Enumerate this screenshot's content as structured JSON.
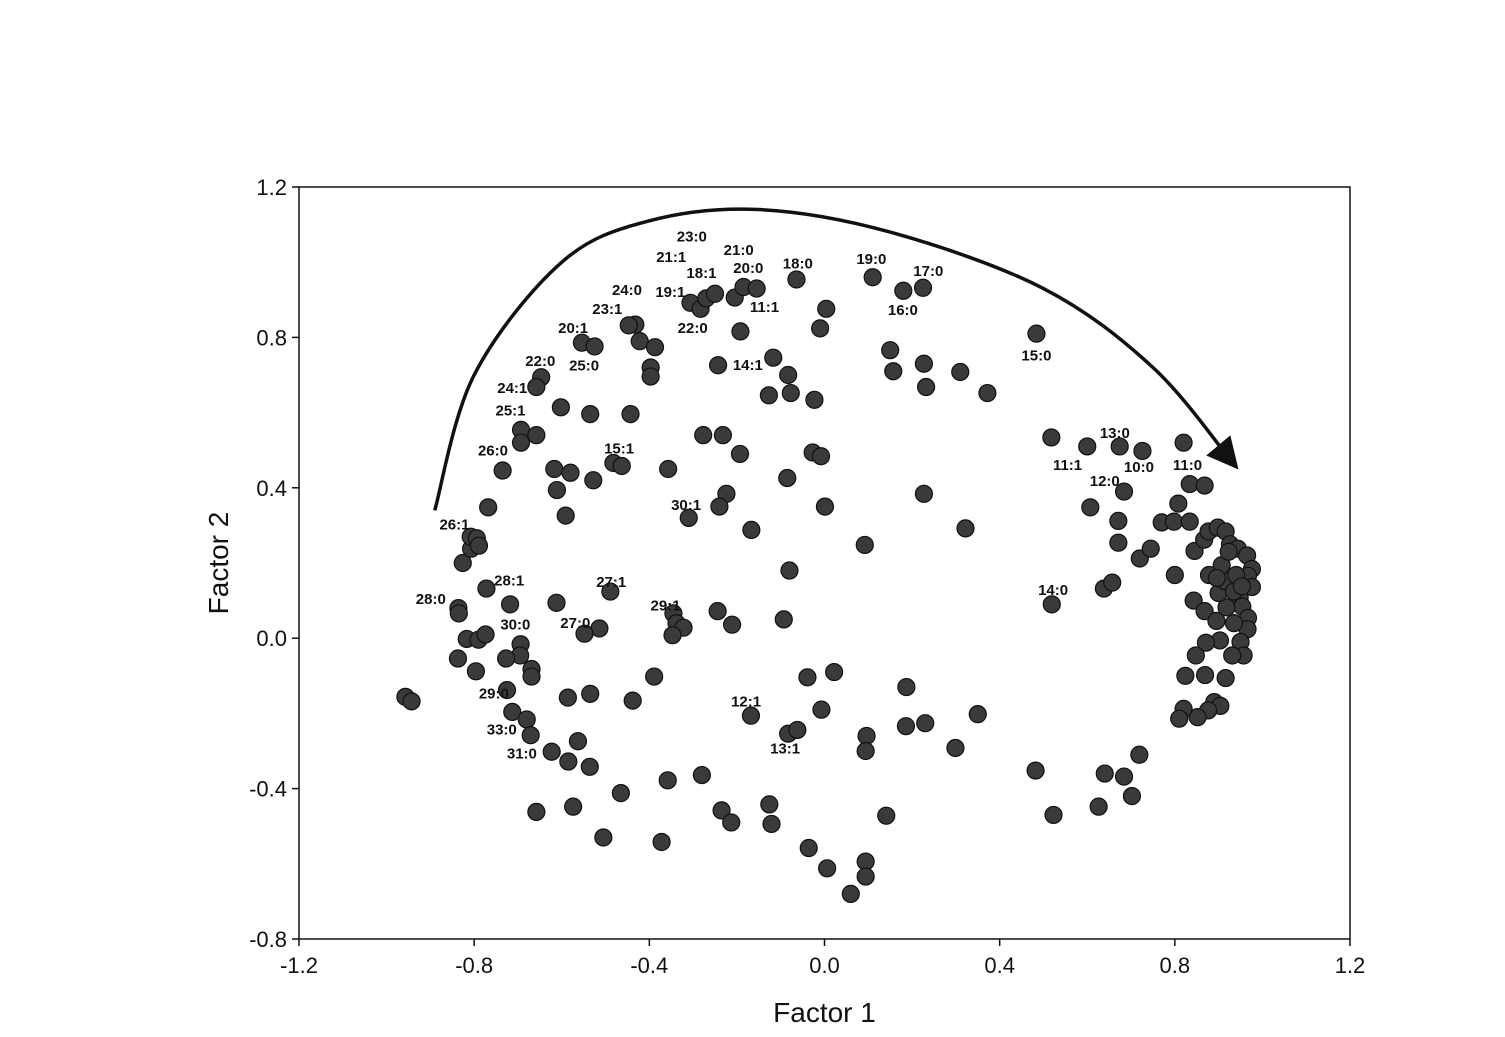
{
  "chart_data": {
    "type": "scatter",
    "title": "",
    "xlabel": "Factor 1",
    "ylabel": "Factor 2",
    "xlim": [
      -1.2,
      1.2
    ],
    "ylim": [
      -0.8,
      1.2
    ],
    "x_ticks": [
      -1.2,
      -0.8,
      -0.4,
      0.0,
      0.4,
      0.8,
      1.2
    ],
    "y_ticks": [
      -0.8,
      -0.4,
      0.0,
      0.4,
      0.8,
      1.2
    ],
    "x_tick_labels": [
      "-1.2",
      "-0.8",
      "-0.4",
      "0.0",
      "0.4",
      "0.8",
      "1.2"
    ],
    "y_tick_labels": [
      "-0.8",
      "-0.4",
      "0.0",
      "0.4",
      "0.8",
      "1.2"
    ],
    "grid": false,
    "legend": "none",
    "marker_color": "#3a3a3a",
    "arrow_path": [
      [
        -0.89,
        0.34
      ],
      [
        -0.8,
        0.7
      ],
      [
        -0.6,
        1.0
      ],
      [
        -0.4,
        1.11
      ],
      [
        -0.15,
        1.14
      ],
      [
        0.15,
        1.08
      ],
      [
        0.5,
        0.93
      ],
      [
        0.75,
        0.72
      ],
      [
        0.93,
        0.47
      ]
    ],
    "labels": [
      {
        "text": "23:0",
        "x": -0.303,
        "y": 1.068
      },
      {
        "text": "21:1",
        "x": -0.35,
        "y": 1.014
      },
      {
        "text": "21:0",
        "x": -0.196,
        "y": 1.033
      },
      {
        "text": "18:1",
        "x": -0.281,
        "y": 0.971
      },
      {
        "text": "20:0",
        "x": -0.174,
        "y": 0.985
      },
      {
        "text": "18:0",
        "x": -0.061,
        "y": 0.996
      },
      {
        "text": "19:0",
        "x": 0.107,
        "y": 1.009
      },
      {
        "text": "17:0",
        "x": 0.237,
        "y": 0.977
      },
      {
        "text": "24:0",
        "x": -0.451,
        "y": 0.926
      },
      {
        "text": "19:1",
        "x": -0.352,
        "y": 0.921
      },
      {
        "text": "11:1",
        "x": -0.137,
        "y": 0.881
      },
      {
        "text": "23:1",
        "x": -0.496,
        "y": 0.876
      },
      {
        "text": "22:0",
        "x": -0.301,
        "y": 0.825
      },
      {
        "text": "16:0",
        "x": 0.179,
        "y": 0.873
      },
      {
        "text": "20:1",
        "x": -0.574,
        "y": 0.825
      },
      {
        "text": "25:0",
        "x": -0.549,
        "y": 0.725
      },
      {
        "text": "14:1",
        "x": -0.175,
        "y": 0.727
      },
      {
        "text": "15:0",
        "x": 0.484,
        "y": 0.752
      },
      {
        "text": "22:0",
        "x": -0.649,
        "y": 0.737
      },
      {
        "text": "24:1",
        "x": -0.713,
        "y": 0.665
      },
      {
        "text": "25:1",
        "x": -0.717,
        "y": 0.605
      },
      {
        "text": "13:0",
        "x": 0.663,
        "y": 0.546
      },
      {
        "text": "26:0",
        "x": -0.757,
        "y": 0.499
      },
      {
        "text": "15:1",
        "x": -0.469,
        "y": 0.504
      },
      {
        "text": "11:1",
        "x": 0.555,
        "y": 0.461
      },
      {
        "text": "10:0",
        "x": 0.718,
        "y": 0.455
      },
      {
        "text": "11:0",
        "x": 0.829,
        "y": 0.461
      },
      {
        "text": "12:0",
        "x": 0.64,
        "y": 0.418
      },
      {
        "text": "30:1",
        "x": -0.316,
        "y": 0.354
      },
      {
        "text": "26:1",
        "x": -0.845,
        "y": 0.303
      },
      {
        "text": "28:1",
        "x": -0.72,
        "y": 0.154
      },
      {
        "text": "27:1",
        "x": -0.487,
        "y": 0.15
      },
      {
        "text": "14:0",
        "x": 0.522,
        "y": 0.128
      },
      {
        "text": "28:0",
        "x": -0.899,
        "y": 0.104
      },
      {
        "text": "29:1",
        "x": -0.363,
        "y": 0.087
      },
      {
        "text": "30:0",
        "x": -0.706,
        "y": 0.037
      },
      {
        "text": "27:0",
        "x": -0.569,
        "y": 0.041
      },
      {
        "text": "29:0",
        "x": -0.755,
        "y": -0.147
      },
      {
        "text": "12:1",
        "x": -0.179,
        "y": -0.168
      },
      {
        "text": "33:0",
        "x": -0.737,
        "y": -0.243
      },
      {
        "text": "13:1",
        "x": -0.09,
        "y": -0.294
      },
      {
        "text": "31:0",
        "x": -0.691,
        "y": -0.307
      }
    ],
    "points": [
      {
        "x": -0.306,
        "y": 0.892
      },
      {
        "x": -0.283,
        "y": 0.876
      },
      {
        "x": -0.27,
        "y": 0.904
      },
      {
        "x": -0.25,
        "y": 0.916
      },
      {
        "x": -0.205,
        "y": 0.906
      },
      {
        "x": -0.185,
        "y": 0.934
      },
      {
        "x": -0.155,
        "y": 0.93
      },
      {
        "x": -0.064,
        "y": 0.954
      },
      {
        "x": 0.11,
        "y": 0.96
      },
      {
        "x": 0.18,
        "y": 0.924
      },
      {
        "x": 0.225,
        "y": 0.932
      },
      {
        "x": 0.004,
        "y": 0.876
      },
      {
        "x": -0.01,
        "y": 0.824
      },
      {
        "x": -0.192,
        "y": 0.816
      },
      {
        "x": -0.432,
        "y": 0.834
      },
      {
        "x": -0.447,
        "y": 0.832
      },
      {
        "x": -0.422,
        "y": 0.79
      },
      {
        "x": -0.387,
        "y": 0.774
      },
      {
        "x": -0.397,
        "y": 0.72
      },
      {
        "x": -0.397,
        "y": 0.696
      },
      {
        "x": -0.554,
        "y": 0.786
      },
      {
        "x": -0.525,
        "y": 0.776
      },
      {
        "x": -0.647,
        "y": 0.694
      },
      {
        "x": -0.658,
        "y": 0.668
      },
      {
        "x": -0.602,
        "y": 0.614
      },
      {
        "x": -0.535,
        "y": 0.596
      },
      {
        "x": -0.443,
        "y": 0.596
      },
      {
        "x": -0.693,
        "y": 0.554
      },
      {
        "x": -0.693,
        "y": 0.52
      },
      {
        "x": -0.658,
        "y": 0.54
      },
      {
        "x": -0.735,
        "y": 0.446
      },
      {
        "x": -0.768,
        "y": 0.348
      },
      {
        "x": -0.617,
        "y": 0.45
      },
      {
        "x": -0.58,
        "y": 0.44
      },
      {
        "x": -0.611,
        "y": 0.394
      },
      {
        "x": -0.528,
        "y": 0.42
      },
      {
        "x": -0.591,
        "y": 0.326
      },
      {
        "x": -0.482,
        "y": 0.466
      },
      {
        "x": -0.463,
        "y": 0.458
      },
      {
        "x": -0.357,
        "y": 0.45
      },
      {
        "x": -0.277,
        "y": 0.54
      },
      {
        "x": -0.232,
        "y": 0.54
      },
      {
        "x": -0.193,
        "y": 0.49
      },
      {
        "x": -0.243,
        "y": 0.726
      },
      {
        "x": -0.117,
        "y": 0.746
      },
      {
        "x": -0.083,
        "y": 0.7
      },
      {
        "x": -0.077,
        "y": 0.652
      },
      {
        "x": -0.127,
        "y": 0.646
      },
      {
        "x": -0.023,
        "y": 0.634
      },
      {
        "x": 0.15,
        "y": 0.766
      },
      {
        "x": 0.157,
        "y": 0.71
      },
      {
        "x": 0.227,
        "y": 0.73
      },
      {
        "x": 0.232,
        "y": 0.668
      },
      {
        "x": 0.31,
        "y": 0.708
      },
      {
        "x": 0.372,
        "y": 0.652
      },
      {
        "x": 0.484,
        "y": 0.81
      },
      {
        "x": -0.027,
        "y": 0.494
      },
      {
        "x": -0.008,
        "y": 0.484
      },
      {
        "x": -0.085,
        "y": 0.426
      },
      {
        "x": -0.224,
        "y": 0.384
      },
      {
        "x": -0.24,
        "y": 0.35
      },
      {
        "x": -0.31,
        "y": 0.32
      },
      {
        "x": -0.167,
        "y": 0.288
      },
      {
        "x": 0.001,
        "y": 0.35
      },
      {
        "x": 0.227,
        "y": 0.384
      },
      {
        "x": 0.322,
        "y": 0.292
      },
      {
        "x": 0.092,
        "y": 0.248
      },
      {
        "x": -0.08,
        "y": 0.18
      },
      {
        "x": -0.093,
        "y": 0.05
      },
      {
        "x": -0.244,
        "y": 0.072
      },
      {
        "x": -0.211,
        "y": 0.036
      },
      {
        "x": -0.345,
        "y": 0.066
      },
      {
        "x": -0.338,
        "y": 0.04
      },
      {
        "x": -0.322,
        "y": 0.028
      },
      {
        "x": -0.347,
        "y": 0.008
      },
      {
        "x": -0.489,
        "y": 0.124
      },
      {
        "x": -0.514,
        "y": 0.026
      },
      {
        "x": -0.548,
        "y": 0.012
      },
      {
        "x": -0.612,
        "y": 0.094
      },
      {
        "x": -0.772,
        "y": 0.132
      },
      {
        "x": -0.718,
        "y": 0.09
      },
      {
        "x": -0.836,
        "y": 0.08
      },
      {
        "x": -0.835,
        "y": 0.066
      },
      {
        "x": -0.826,
        "y": 0.2
      },
      {
        "x": -0.807,
        "y": 0.238
      },
      {
        "x": -0.808,
        "y": 0.27
      },
      {
        "x": -0.794,
        "y": 0.266
      },
      {
        "x": -0.789,
        "y": 0.246
      },
      {
        "x": -0.817,
        "y": -0.002
      },
      {
        "x": -0.79,
        "y": -0.004
      },
      {
        "x": -0.774,
        "y": 0.01
      },
      {
        "x": -0.837,
        "y": -0.054
      },
      {
        "x": -0.796,
        "y": -0.088
      },
      {
        "x": -0.694,
        "y": -0.016
      },
      {
        "x": -0.695,
        "y": -0.046
      },
      {
        "x": -0.727,
        "y": -0.054
      },
      {
        "x": -0.669,
        "y": -0.082
      },
      {
        "x": -0.669,
        "y": -0.102
      },
      {
        "x": -0.725,
        "y": -0.138
      },
      {
        "x": -0.713,
        "y": -0.196
      },
      {
        "x": -0.68,
        "y": -0.216
      },
      {
        "x": -0.671,
        "y": -0.258
      },
      {
        "x": -0.623,
        "y": -0.302
      },
      {
        "x": -0.585,
        "y": -0.328
      },
      {
        "x": -0.563,
        "y": -0.274
      },
      {
        "x": -0.536,
        "y": -0.342
      },
      {
        "x": -0.586,
        "y": -0.158
      },
      {
        "x": -0.535,
        "y": -0.148
      },
      {
        "x": -0.438,
        "y": -0.166
      },
      {
        "x": -0.389,
        "y": -0.102
      },
      {
        "x": -0.658,
        "y": -0.462
      },
      {
        "x": -0.574,
        "y": -0.448
      },
      {
        "x": -0.505,
        "y": -0.53
      },
      {
        "x": -0.465,
        "y": -0.412
      },
      {
        "x": -0.372,
        "y": -0.542
      },
      {
        "x": -0.358,
        "y": -0.378
      },
      {
        "x": -0.28,
        "y": -0.364
      },
      {
        "x": -0.235,
        "y": -0.458
      },
      {
        "x": -0.213,
        "y": -0.49
      },
      {
        "x": -0.126,
        "y": -0.442
      },
      {
        "x": -0.121,
        "y": -0.494
      },
      {
        "x": -0.036,
        "y": -0.558
      },
      {
        "x": 0.006,
        "y": -0.612
      },
      {
        "x": 0.06,
        "y": -0.68
      },
      {
        "x": 0.094,
        "y": -0.594
      },
      {
        "x": 0.094,
        "y": -0.634
      },
      {
        "x": 0.141,
        "y": -0.472
      },
      {
        "x": -0.168,
        "y": -0.206
      },
      {
        "x": -0.083,
        "y": -0.254
      },
      {
        "x": -0.062,
        "y": -0.244
      },
      {
        "x": -0.039,
        "y": -0.104
      },
      {
        "x": 0.022,
        "y": -0.09
      },
      {
        "x": -0.007,
        "y": -0.19
      },
      {
        "x": 0.096,
        "y": -0.26
      },
      {
        "x": 0.094,
        "y": -0.3
      },
      {
        "x": 0.187,
        "y": -0.13
      },
      {
        "x": 0.186,
        "y": -0.234
      },
      {
        "x": 0.23,
        "y": -0.226
      },
      {
        "x": 0.299,
        "y": -0.292
      },
      {
        "x": 0.35,
        "y": -0.202
      },
      {
        "x": 0.482,
        "y": -0.352
      },
      {
        "x": 0.523,
        "y": -0.47
      },
      {
        "x": 0.626,
        "y": -0.448
      },
      {
        "x": 0.64,
        "y": -0.36
      },
      {
        "x": 0.684,
        "y": -0.368
      },
      {
        "x": 0.702,
        "y": -0.42
      },
      {
        "x": 0.719,
        "y": -0.31
      },
      {
        "x": 0.519,
        "y": 0.09
      },
      {
        "x": 0.518,
        "y": 0.534
      },
      {
        "x": 0.6,
        "y": 0.51
      },
      {
        "x": 0.674,
        "y": 0.51
      },
      {
        "x": 0.726,
        "y": 0.498
      },
      {
        "x": 0.684,
        "y": 0.39
      },
      {
        "x": 0.607,
        "y": 0.348
      },
      {
        "x": 0.671,
        "y": 0.312
      },
      {
        "x": 0.671,
        "y": 0.254
      },
      {
        "x": 0.638,
        "y": 0.132
      },
      {
        "x": 0.657,
        "y": 0.148
      },
      {
        "x": 0.72,
        "y": 0.212
      },
      {
        "x": 0.745,
        "y": 0.238
      },
      {
        "x": 0.77,
        "y": 0.308
      },
      {
        "x": 0.798,
        "y": 0.31
      },
      {
        "x": 0.808,
        "y": 0.358
      },
      {
        "x": 0.8,
        "y": 0.168
      },
      {
        "x": 0.82,
        "y": 0.52
      },
      {
        "x": 0.834,
        "y": 0.41
      },
      {
        "x": 0.868,
        "y": 0.406
      },
      {
        "x": 0.834,
        "y": 0.31
      },
      {
        "x": 0.845,
        "y": 0.232
      },
      {
        "x": 0.867,
        "y": 0.262
      },
      {
        "x": 0.877,
        "y": 0.284
      },
      {
        "x": 0.898,
        "y": 0.294
      },
      {
        "x": 0.916,
        "y": 0.284
      },
      {
        "x": 0.926,
        "y": 0.25
      },
      {
        "x": 0.944,
        "y": 0.238
      },
      {
        "x": 0.965,
        "y": 0.22
      },
      {
        "x": 0.976,
        "y": 0.184
      },
      {
        "x": 0.967,
        "y": 0.166
      },
      {
        "x": 0.976,
        "y": 0.136
      },
      {
        "x": 0.948,
        "y": 0.108
      },
      {
        "x": 0.954,
        "y": 0.084
      },
      {
        "x": 0.967,
        "y": 0.054
      },
      {
        "x": 0.966,
        "y": 0.024
      },
      {
        "x": 0.95,
        "y": -0.01
      },
      {
        "x": 0.957,
        "y": -0.046
      },
      {
        "x": 0.931,
        "y": -0.046
      },
      {
        "x": 0.903,
        "y": -0.006
      },
      {
        "x": 0.871,
        "y": -0.012
      },
      {
        "x": 0.848,
        "y": -0.046
      },
      {
        "x": 0.824,
        "y": -0.1
      },
      {
        "x": 0.869,
        "y": -0.098
      },
      {
        "x": 0.916,
        "y": -0.106
      },
      {
        "x": 0.89,
        "y": -0.17
      },
      {
        "x": 0.904,
        "y": -0.18
      },
      {
        "x": 0.876,
        "y": -0.192
      },
      {
        "x": 0.852,
        "y": -0.21
      },
      {
        "x": 0.82,
        "y": -0.188
      },
      {
        "x": 0.81,
        "y": -0.214
      },
      {
        "x": 0.843,
        "y": 0.1
      },
      {
        "x": 0.868,
        "y": 0.072
      },
      {
        "x": 0.895,
        "y": 0.046
      },
      {
        "x": 0.918,
        "y": 0.082
      },
      {
        "x": 0.935,
        "y": 0.04
      },
      {
        "x": 0.9,
        "y": 0.12
      },
      {
        "x": 0.915,
        "y": 0.152
      },
      {
        "x": 0.94,
        "y": 0.168
      },
      {
        "x": 0.907,
        "y": 0.194
      },
      {
        "x": 0.923,
        "y": 0.23
      },
      {
        "x": 0.878,
        "y": 0.168
      },
      {
        "x": 0.896,
        "y": 0.16
      },
      {
        "x": 0.935,
        "y": 0.124
      },
      {
        "x": 0.953,
        "y": 0.138
      },
      {
        "x": -0.957,
        "y": -0.156
      },
      {
        "x": -0.943,
        "y": -0.168
      }
    ]
  }
}
